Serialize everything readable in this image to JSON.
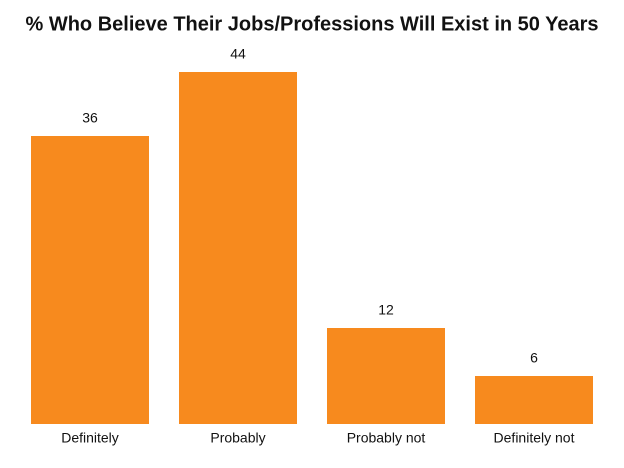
{
  "chart_data": {
    "type": "bar",
    "title": "% Who Believe Their Jobs/Professions Will Exist in 50 Years",
    "categories": [
      "Definitely",
      "Probably",
      "Probably not",
      "Definitely not"
    ],
    "values": [
      36,
      44,
      12,
      6
    ],
    "color": "#f78a1e"
  }
}
